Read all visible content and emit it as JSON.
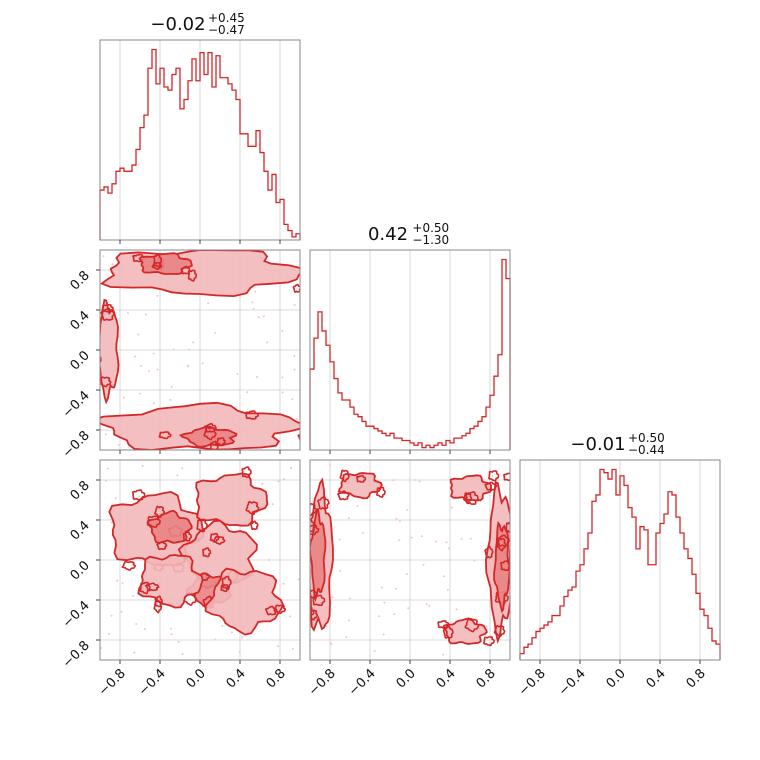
{
  "colors": {
    "main": "#d62728",
    "fill_outer": "#f2b8b9",
    "fill_inner": "#e98384",
    "points": "#f4c4c8"
  },
  "chart_data": {
    "type": "corner",
    "panels": [
      {
        "id": "hist_0",
        "type": "histogram",
        "row": 0,
        "col": 0,
        "title": {
          "median": "−0.02",
          "upper": "+0.45",
          "lower": "−0.47"
        },
        "x_range": [
          -1,
          1
        ],
        "bin_values": [
          16,
          17,
          15,
          18,
          22,
          23,
          22,
          22,
          24,
          29,
          36,
          40,
          55,
          61,
          50,
          55,
          49,
          48,
          53,
          55,
          42,
          45,
          51,
          58,
          51,
          60,
          53,
          60,
          49,
          59,
          52,
          52,
          50,
          48,
          45,
          34,
          34,
          30,
          30,
          35,
          28,
          22,
          16,
          21,
          12,
          13,
          5,
          3,
          1,
          2
        ]
      },
      {
        "id": "hist_1",
        "type": "histogram",
        "row": 1,
        "col": 1,
        "title": {
          "median": "0.42",
          "upper": "+0.50",
          "lower": "−1.30"
        },
        "x_range": [
          -1,
          1
        ],
        "bin_values": [
          34,
          47,
          58,
          50,
          44,
          37,
          30,
          24,
          21,
          21,
          18,
          15,
          14,
          12,
          10,
          10,
          9,
          8,
          7,
          6,
          7,
          5,
          5,
          4,
          4,
          3,
          2,
          3,
          1,
          2,
          1,
          2,
          3,
          2,
          4,
          3,
          5,
          5,
          6,
          7,
          9,
          10,
          12,
          14,
          18,
          23,
          31,
          40,
          80,
          72
        ]
      },
      {
        "id": "hist_2",
        "type": "histogram",
        "row": 2,
        "col": 2,
        "title": {
          "median": "−0.01",
          "upper": "+0.50",
          "lower": "−0.44"
        },
        "x_range": [
          -1,
          1
        ],
        "bin_values": [
          2,
          4,
          5,
          7,
          9,
          10,
          11,
          12,
          14,
          14,
          17,
          20,
          22,
          23,
          28,
          30,
          35,
          40,
          50,
          52,
          60,
          59,
          57,
          60,
          52,
          58,
          55,
          48,
          45,
          35,
          42,
          41,
          30,
          30,
          40,
          43,
          46,
          53,
          52,
          45,
          40,
          35,
          32,
          27,
          21,
          16,
          14,
          10,
          6,
          5
        ]
      },
      {
        "id": "contour_10",
        "type": "contour",
        "row": 1,
        "col": 0,
        "x_range": [
          -1,
          1
        ],
        "y_range": [
          -1,
          1
        ],
        "regions": [
          {
            "level": "outer",
            "cx": 0.0,
            "cy": 0.78,
            "rx": 0.95,
            "ry": 0.22
          },
          {
            "level": "inner",
            "cx": -0.35,
            "cy": 0.86,
            "rx": 0.25,
            "ry": 0.1
          },
          {
            "level": "outer",
            "cx": 0.0,
            "cy": -0.78,
            "rx": 0.95,
            "ry": 0.22
          },
          {
            "level": "inner",
            "cx": 0.1,
            "cy": -0.87,
            "rx": 0.25,
            "ry": 0.09
          },
          {
            "level": "outer",
            "cx": -0.92,
            "cy": 0.0,
            "rx": 0.1,
            "ry": 0.45
          }
        ]
      },
      {
        "id": "contour_20",
        "type": "contour",
        "row": 2,
        "col": 0,
        "x_range": [
          -1,
          1
        ],
        "y_range": [
          -1,
          1
        ],
        "regions": [
          {
            "level": "outer",
            "cx": -0.45,
            "cy": 0.3,
            "rx": 0.45,
            "ry": 0.35
          },
          {
            "level": "inner",
            "cx": -0.3,
            "cy": 0.32,
            "rx": 0.2,
            "ry": 0.15
          },
          {
            "level": "outer",
            "cx": 0.2,
            "cy": 0.05,
            "rx": 0.35,
            "ry": 0.3
          },
          {
            "level": "inner",
            "cx": 0.1,
            "cy": -0.3,
            "rx": 0.2,
            "ry": 0.15
          },
          {
            "level": "outer",
            "cx": 0.45,
            "cy": -0.4,
            "rx": 0.35,
            "ry": 0.3
          },
          {
            "level": "outer",
            "cx": -0.3,
            "cy": -0.2,
            "rx": 0.3,
            "ry": 0.25
          },
          {
            "level": "outer",
            "cx": 0.3,
            "cy": 0.6,
            "rx": 0.35,
            "ry": 0.25
          }
        ]
      },
      {
        "id": "contour_21",
        "type": "contour",
        "row": 2,
        "col": 1,
        "x_range": [
          -1,
          1
        ],
        "y_range": [
          -1,
          1
        ],
        "regions": [
          {
            "level": "outer",
            "cx": -0.9,
            "cy": 0.0,
            "rx": 0.12,
            "ry": 0.7
          },
          {
            "level": "inner",
            "cx": -0.92,
            "cy": 0.05,
            "rx": 0.07,
            "ry": 0.4
          },
          {
            "level": "outer",
            "cx": 0.9,
            "cy": 0.0,
            "rx": 0.12,
            "ry": 0.7
          },
          {
            "level": "inner",
            "cx": 0.92,
            "cy": -0.05,
            "rx": 0.07,
            "ry": 0.4
          },
          {
            "level": "outer",
            "cx": -0.5,
            "cy": 0.75,
            "rx": 0.2,
            "ry": 0.12
          },
          {
            "level": "outer",
            "cx": 0.6,
            "cy": 0.72,
            "rx": 0.2,
            "ry": 0.12
          },
          {
            "level": "outer",
            "cx": 0.55,
            "cy": -0.72,
            "rx": 0.2,
            "ry": 0.12
          }
        ]
      }
    ],
    "x_ticks": [
      "−0.8",
      "−0.4",
      "0.0",
      "0.4",
      "0.8"
    ],
    "y_ticks": [
      "0.8",
      "0.4",
      "0.0",
      "−0.4",
      "−0.8"
    ],
    "tick_values": [
      -0.8,
      -0.4,
      0.0,
      0.4,
      0.8
    ],
    "grid": true
  }
}
